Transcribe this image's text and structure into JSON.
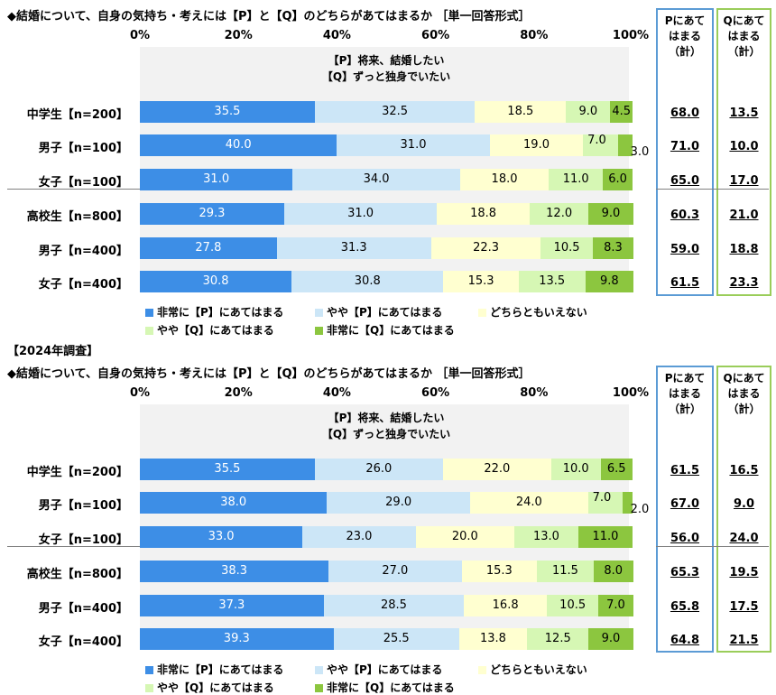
{
  "survey_label": "【2024年調査】",
  "header_sum_p": [
    "Pにあて",
    "はまる",
    "（計）"
  ],
  "header_sum_q": [
    "Qにあて",
    "はまる",
    "（計）"
  ],
  "chart_data": [
    {
      "type": "bar",
      "orientation": "horizontal-stacked-100",
      "title": "◆結婚について、自身の気持ち・考えには【P】と【Q】のどちらがあてはまるか ［単一回答形式］",
      "statement_p": "【P】将来、結婚したい",
      "statement_q": "【Q】ずっと独身でいたい",
      "xlim": [
        0,
        100
      ],
      "x_ticks": [
        "0%",
        "20%",
        "40%",
        "60%",
        "80%",
        "100%"
      ],
      "legend": [
        "非常に【P】にあてはまる",
        "やや【P】にあてはまる",
        "どちらともいえない",
        "やや【Q】にあてはまる",
        "非常に【Q】にあてはまる"
      ],
      "colors": [
        "#3d8ee6",
        "#cce6f7",
        "#ffffd0",
        "#d6f7b4",
        "#8cc63f"
      ],
      "categories": [
        "中学生【n=200】",
        "男子【n=100】",
        "女子【n=100】",
        "高校生【n=800】",
        "男子【n=400】",
        "女子【n=400】"
      ],
      "series": [
        {
          "name": "非常に【P】にあてはまる",
          "values": [
            35.5,
            40.0,
            31.0,
            29.3,
            27.8,
            30.8
          ]
        },
        {
          "name": "やや【P】にあてはまる",
          "values": [
            32.5,
            31.0,
            34.0,
            31.0,
            31.3,
            30.8
          ]
        },
        {
          "name": "どちらともいえない",
          "values": [
            18.5,
            19.0,
            18.0,
            18.8,
            22.3,
            15.3
          ]
        },
        {
          "name": "やや【Q】にあてはまる",
          "values": [
            9.0,
            7.0,
            11.0,
            12.0,
            10.5,
            13.5
          ]
        },
        {
          "name": "非常に【Q】にあてはまる",
          "values": [
            4.5,
            3.0,
            6.0,
            9.0,
            8.3,
            9.8
          ]
        }
      ],
      "labels": [
        [
          "35.5",
          "32.5",
          "18.5",
          "9.0",
          "4.5"
        ],
        [
          "40.0",
          "31.0",
          "19.0",
          "7.0",
          "3.0"
        ],
        [
          "31.0",
          "34.0",
          "18.0",
          "11.0",
          "6.0"
        ],
        [
          "29.3",
          "31.0",
          "18.8",
          "12.0",
          "9.0"
        ],
        [
          "27.8",
          "31.3",
          "22.3",
          "10.5",
          "8.3"
        ],
        [
          "30.8",
          "30.8",
          "15.3",
          "13.5",
          "9.8"
        ]
      ],
      "sum_p": [
        "68.0",
        "71.0",
        "65.0",
        "60.3",
        "59.0",
        "61.5"
      ],
      "sum_q": [
        "13.5",
        "10.0",
        "17.0",
        "21.0",
        "18.8",
        "23.3"
      ]
    },
    {
      "type": "bar",
      "orientation": "horizontal-stacked-100",
      "title": "◆結婚について、自身の気持ち・考えには【P】と【Q】のどちらがあてはまるか ［単一回答形式］",
      "statement_p": "【P】将来、結婚したい",
      "statement_q": "【Q】ずっと独身でいたい",
      "xlim": [
        0,
        100
      ],
      "x_ticks": [
        "0%",
        "20%",
        "40%",
        "60%",
        "80%",
        "100%"
      ],
      "legend": [
        "非常に【P】にあてはまる",
        "やや【P】にあてはまる",
        "どちらともいえない",
        "やや【Q】にあてはまる",
        "非常に【Q】にあてはまる"
      ],
      "colors": [
        "#3d8ee6",
        "#cce6f7",
        "#ffffd0",
        "#d6f7b4",
        "#8cc63f"
      ],
      "categories": [
        "中学生【n=200】",
        "男子【n=100】",
        "女子【n=100】",
        "高校生【n=800】",
        "男子【n=400】",
        "女子【n=400】"
      ],
      "series": [
        {
          "name": "非常に【P】にあてはまる",
          "values": [
            35.5,
            38.0,
            33.0,
            38.3,
            37.3,
            39.3
          ]
        },
        {
          "name": "やや【P】にあてはまる",
          "values": [
            26.0,
            29.0,
            23.0,
            27.0,
            28.5,
            25.5
          ]
        },
        {
          "name": "どちらともいえない",
          "values": [
            22.0,
            24.0,
            20.0,
            15.3,
            16.8,
            13.8
          ]
        },
        {
          "name": "やや【Q】にあてはまる",
          "values": [
            10.0,
            7.0,
            13.0,
            11.5,
            10.5,
            12.5
          ]
        },
        {
          "name": "非常に【Q】にあてはまる",
          "values": [
            6.5,
            2.0,
            11.0,
            8.0,
            7.0,
            9.0
          ]
        }
      ],
      "labels": [
        [
          "35.5",
          "26.0",
          "22.0",
          "10.0",
          "6.5"
        ],
        [
          "38.0",
          "29.0",
          "24.0",
          "7.0",
          "2.0"
        ],
        [
          "33.0",
          "23.0",
          "20.0",
          "13.0",
          "11.0"
        ],
        [
          "38.3",
          "27.0",
          "15.3",
          "11.5",
          "8.0"
        ],
        [
          "37.3",
          "28.5",
          "16.8",
          "10.5",
          "7.0"
        ],
        [
          "39.3",
          "25.5",
          "13.8",
          "12.5",
          "9.0"
        ]
      ],
      "sum_p": [
        "61.5",
        "67.0",
        "56.0",
        "65.3",
        "65.8",
        "64.8"
      ],
      "sum_q": [
        "16.5",
        "9.0",
        "24.0",
        "19.5",
        "17.5",
        "21.5"
      ]
    }
  ]
}
